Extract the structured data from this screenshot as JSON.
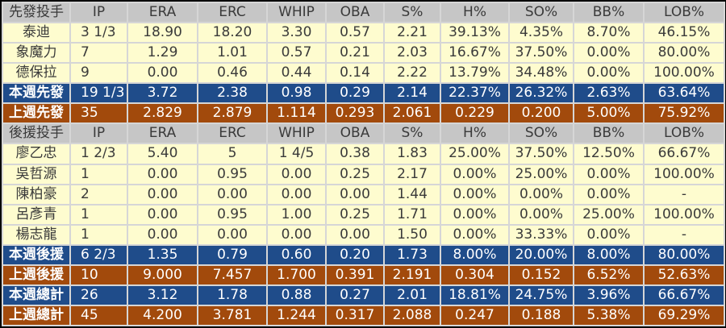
{
  "colors": {
    "header": "#c6c6c6",
    "player_row": "#fefccf",
    "this_week": "#1f4c8a",
    "last_week": "#a24a0c"
  },
  "columns": [
    "IP",
    "ERA",
    "ERC",
    "WHIP",
    "OBA",
    "S%",
    "H%",
    "SO%",
    "BB%",
    "LOB%"
  ],
  "sections": [
    {
      "header": "先發投手",
      "players": [
        {
          "name": "泰迪",
          "values": [
            "3 1/3",
            "18.90",
            "18.20",
            "3.30",
            "0.57",
            "2.21",
            "39.13%",
            "4.35%",
            "8.70%",
            "46.15%"
          ]
        },
        {
          "name": "象魔力",
          "values": [
            "7",
            "1.29",
            "1.01",
            "0.57",
            "0.21",
            "2.03",
            "16.67%",
            "37.50%",
            "0.00%",
            "80.00%"
          ]
        },
        {
          "name": "德保拉",
          "values": [
            "9",
            "0.00",
            "0.46",
            "0.44",
            "0.14",
            "2.22",
            "13.79%",
            "34.48%",
            "0.00%",
            "100.00%"
          ]
        }
      ],
      "totals": [
        {
          "type": "cur",
          "name": "本週先發",
          "values": [
            "19 1/3",
            "3.72",
            "2.38",
            "0.98",
            "0.29",
            "2.14",
            "22.37%",
            "26.32%",
            "2.63%",
            "63.64%"
          ]
        },
        {
          "type": "prev",
          "name": "上週先發",
          "values": [
            "35",
            "2.829",
            "2.879",
            "1.114",
            "0.293",
            "2.061",
            "0.229",
            "0.200",
            "5.00%",
            "75.92%"
          ]
        }
      ]
    },
    {
      "header": "後援投手",
      "players": [
        {
          "name": "廖乙忠",
          "values": [
            "1 2/3",
            "5.40",
            "5",
            "1 4/5",
            "0.38",
            "1.83",
            "25.00%",
            "37.50%",
            "12.50%",
            "66.67%"
          ]
        },
        {
          "name": "吳哲源",
          "values": [
            "1",
            "0.00",
            "0.95",
            "0.00",
            "0.25",
            "2.17",
            "0.00%",
            "25.00%",
            "0.00%",
            "100.00%"
          ]
        },
        {
          "name": "陳柏豪",
          "values": [
            "2",
            "0.00",
            "0.00",
            "0.00",
            "0.00",
            "1.44",
            "0.00%",
            "0.00%",
            "0.00%",
            "-"
          ]
        },
        {
          "name": "呂彥青",
          "values": [
            "1",
            "0.00",
            "0.95",
            "1.00",
            "0.25",
            "1.71",
            "0.00%",
            "0.00%",
            "25.00%",
            "100.00%"
          ]
        },
        {
          "name": "楊志龍",
          "values": [
            "1",
            "0.00",
            "0.00",
            "0.00",
            "0.00",
            "1.50",
            "0.00%",
            "33.33%",
            "0.00%",
            "-"
          ]
        }
      ],
      "totals": [
        {
          "type": "cur",
          "name": "本週後援",
          "values": [
            "6 2/3",
            "1.35",
            "0.79",
            "0.60",
            "0.20",
            "1.73",
            "8.00%",
            "20.00%",
            "8.00%",
            "80.00%"
          ]
        },
        {
          "type": "prev",
          "name": "上週後援",
          "values": [
            "10",
            "9.000",
            "7.457",
            "1.700",
            "0.391",
            "2.191",
            "0.304",
            "0.152",
            "6.52%",
            "52.63%"
          ]
        },
        {
          "type": "cur",
          "name": "本週總計",
          "values": [
            "26",
            "3.12",
            "1.78",
            "0.88",
            "0.27",
            "2.01",
            "18.81%",
            "24.75%",
            "3.96%",
            "66.67%"
          ]
        },
        {
          "type": "prev",
          "name": "上週總計",
          "values": [
            "45",
            "4.200",
            "3.781",
            "1.244",
            "0.317",
            "2.088",
            "0.247",
            "0.188",
            "5.38%",
            "69.29%"
          ]
        }
      ]
    }
  ]
}
